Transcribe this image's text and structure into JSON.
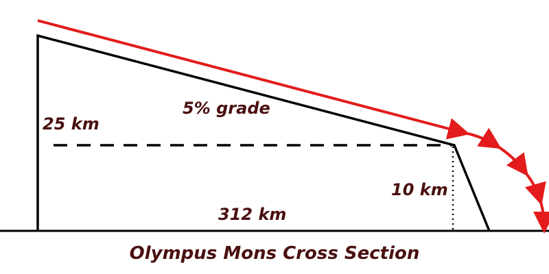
{
  "labels": {
    "height_total": "25 km",
    "grade": "5% grade",
    "height_drop": "10 km",
    "base_length": "312 km"
  },
  "caption": "Olympus Mons Cross Section",
  "colors": {
    "outline": "#000000",
    "trajectory": "#e31b1b",
    "text": "#4a1010"
  }
}
